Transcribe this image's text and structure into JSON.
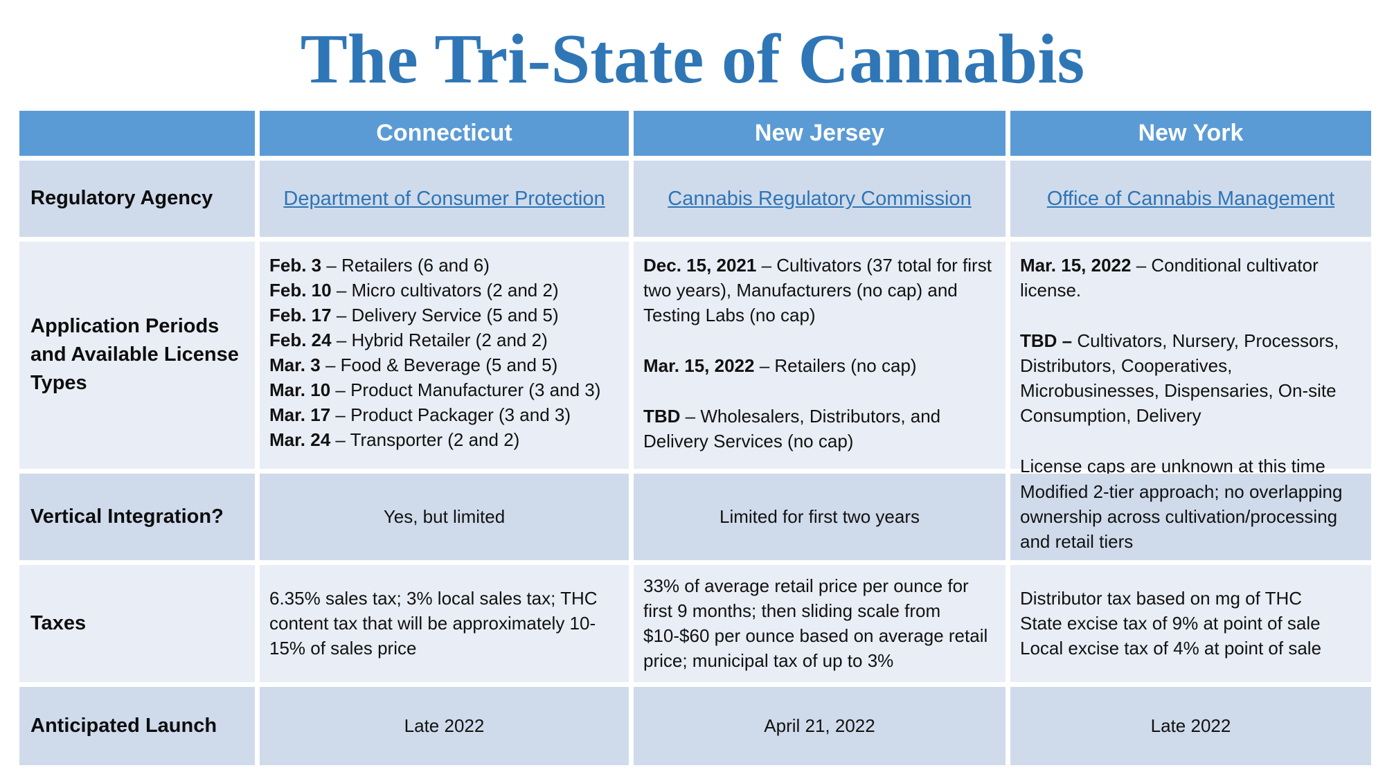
{
  "page": {
    "title": "The Tri-State of Cannabis"
  },
  "colors": {
    "title_blue": "#2F76B6",
    "header_bg": "#5B9BD5",
    "band_dark": "#CFDBEB",
    "band_light": "#E9EDF5",
    "link_blue": "#2E74B6"
  },
  "table": {
    "columns": {
      "blank": "",
      "ct": "Connecticut",
      "nj": "New Jersey",
      "ny": "New York"
    },
    "rows": {
      "regulatory": {
        "label": "Regulatory Agency",
        "ct": "Department of Consumer Protection",
        "nj": "Cannabis Regulatory Commission",
        "ny": "Office of Cannabis Management"
      },
      "application": {
        "label": "Application Periods and Available License Types",
        "ct": [
          {
            "lead": "Feb. 3",
            "rest": " – Retailers (6 and 6)"
          },
          {
            "lead": "Feb. 10",
            "rest": " – Micro cultivators (2 and 2)"
          },
          {
            "lead": "Feb. 17",
            "rest": " – Delivery Service (5 and 5)"
          },
          {
            "lead": "Feb. 24",
            "rest": " – Hybrid Retailer (2 and 2)"
          },
          {
            "lead": "Mar. 3",
            "rest": " – Food & Beverage (5 and 5)"
          },
          {
            "lead": "Mar. 10",
            "rest": " – Product Manufacturer (3 and 3)"
          },
          {
            "lead": "Mar. 17",
            "rest": " – Product Packager (3 and 3)"
          },
          {
            "lead": "Mar. 24",
            "rest": " – Transporter (2 and 2)"
          }
        ],
        "nj": [
          {
            "lead": "Dec. 15, 2021",
            "rest": " – Cultivators (37 total for first two years), Manufacturers (no cap) and Testing Labs (no cap)"
          },
          {
            "lead": "Mar. 15, 2022",
            "rest": " – Retailers (no cap)"
          },
          {
            "lead": "TBD",
            "rest": " – Wholesalers, Distributors, and Delivery Services (no cap)"
          }
        ],
        "ny": [
          {
            "lead": "Mar. 15, 2022",
            "rest": " – Conditional cultivator license."
          },
          {
            "lead": "TBD –",
            "rest": " Cultivators, Nursery, Processors, Distributors, Cooperatives, Microbusinesses, Dispensaries, On-site Consumption, Delivery"
          },
          {
            "lead": "",
            "rest": "License caps are unknown at this time"
          }
        ]
      },
      "vertical": {
        "label": "Vertical Integration?",
        "ct": "Yes, but limited",
        "nj": "Limited for first two years",
        "ny": "Modified 2-tier approach; no overlapping ownership across cultivation/processing and retail tiers"
      },
      "taxes": {
        "label": "Taxes",
        "ct": "6.35% sales tax; 3% local sales tax; THC content tax that will be approximately 10-15% of sales price",
        "nj": "33% of average retail price per ounce for first 9 months; then sliding scale from $10-$60 per ounce based on average retail price; municipal tax of up to 3%",
        "ny": [
          "Distributor tax based on mg of THC",
          "State excise tax of 9% at point of sale",
          "Local excise tax of 4% at point of sale"
        ]
      },
      "launch": {
        "label": "Anticipated Launch",
        "ct": "Late 2022",
        "nj": "April 21, 2022",
        "ny": "Late 2022"
      }
    }
  }
}
